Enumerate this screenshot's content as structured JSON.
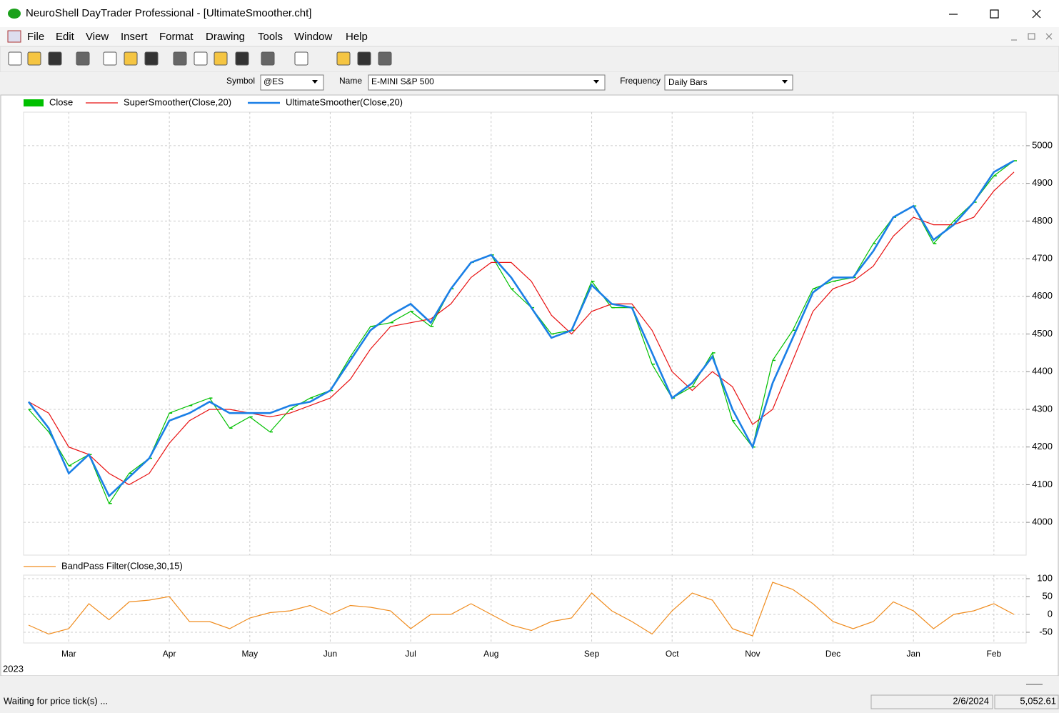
{
  "window": {
    "title": "NeuroShell DayTrader Professional - [UltimateSmoother.cht]"
  },
  "menu": [
    "File",
    "Edit",
    "View",
    "Insert",
    "Format",
    "Drawing",
    "Tools",
    "Window",
    "Help"
  ],
  "symbol_bar": {
    "symbol_label": "Symbol",
    "symbol": "@ES",
    "name_label": "Name",
    "name": "E-MINI S&P 500",
    "frequency_label": "Frequency",
    "frequency": "Daily Bars"
  },
  "chart_data": [
    {
      "type": "line",
      "categories": [
        null,
        null,
        "Mar",
        null,
        null,
        null,
        null,
        "Apr",
        null,
        null,
        null,
        "May",
        null,
        null,
        null,
        "Jun",
        null,
        null,
        null,
        "Jul",
        null,
        null,
        null,
        "Aug",
        null,
        null,
        null,
        null,
        "Sep",
        null,
        null,
        null,
        "Oct",
        null,
        null,
        null,
        "Nov",
        null,
        null,
        null,
        "Dec",
        null,
        null,
        null,
        "Jan",
        null,
        null,
        null,
        "Feb",
        null
      ],
      "year_label": "2023",
      "ylim": [
        3913,
        5089
      ],
      "yticks": [
        4000,
        4100,
        4200,
        4300,
        4400,
        4500,
        4600,
        4700,
        4800,
        4900,
        5000
      ],
      "grid": true,
      "series": [
        {
          "name": "Close",
          "color": "#00c000",
          "values": [
            4300,
            4240,
            4150,
            4180,
            4050,
            4130,
            4170,
            4290,
            4310,
            4330,
            4250,
            4280,
            4240,
            4300,
            4330,
            4350,
            4440,
            4520,
            4530,
            4560,
            4520,
            4620,
            4690,
            4710,
            4620,
            4570,
            4500,
            4510,
            4640,
            4570,
            4570,
            4420,
            4330,
            4360,
            4450,
            4270,
            4200,
            4430,
            4510,
            4620,
            4640,
            4650,
            4740,
            4810,
            4840,
            4740,
            4800,
            4850,
            4920,
            4960
          ]
        },
        {
          "name": "SuperSmoother(Close,20)",
          "color": "#e81010",
          "values": [
            4320,
            4290,
            4200,
            4180,
            4130,
            4100,
            4130,
            4210,
            4270,
            4300,
            4300,
            4290,
            4280,
            4290,
            4310,
            4330,
            4380,
            4460,
            4520,
            4530,
            4540,
            4580,
            4650,
            4690,
            4690,
            4640,
            4550,
            4500,
            4560,
            4580,
            4580,
            4510,
            4400,
            4350,
            4400,
            4360,
            4260,
            4300,
            4430,
            4560,
            4620,
            4640,
            4680,
            4760,
            4810,
            4790,
            4790,
            4810,
            4880,
            4930
          ]
        },
        {
          "name": "UltimateSmoother(Close,20)",
          "color": "#1a7fe6",
          "values": [
            4320,
            4250,
            4130,
            4180,
            4070,
            4120,
            4170,
            4270,
            4290,
            4320,
            4290,
            4290,
            4290,
            4310,
            4320,
            4350,
            4430,
            4510,
            4550,
            4580,
            4530,
            4620,
            4690,
            4710,
            4650,
            4570,
            4490,
            4510,
            4630,
            4580,
            4570,
            4450,
            4330,
            4370,
            4440,
            4300,
            4200,
            4370,
            4490,
            4610,
            4650,
            4650,
            4720,
            4810,
            4840,
            4750,
            4790,
            4850,
            4930,
            4960
          ]
        }
      ]
    },
    {
      "type": "line",
      "ylim": [
        -80,
        110
      ],
      "yticks": [
        100,
        50,
        0,
        -50
      ],
      "grid": true,
      "series": [
        {
          "name": "BandPass Filter(Close,30,15)",
          "color": "#f08c1e",
          "values": [
            -30,
            -55,
            -40,
            30,
            -15,
            35,
            40,
            50,
            -20,
            -20,
            -40,
            -10,
            5,
            10,
            25,
            0,
            25,
            20,
            10,
            -40,
            0,
            0,
            30,
            0,
            -30,
            -45,
            -20,
            -10,
            60,
            10,
            -20,
            -55,
            10,
            60,
            40,
            -40,
            -60,
            90,
            70,
            30,
            -20,
            -40,
            -20,
            35,
            10,
            -40,
            0,
            10,
            30,
            0
          ]
        }
      ]
    }
  ],
  "status_bar": {
    "message": "Waiting for price tick(s) ...",
    "date": "2/6/2024",
    "price": "5,052.61"
  }
}
